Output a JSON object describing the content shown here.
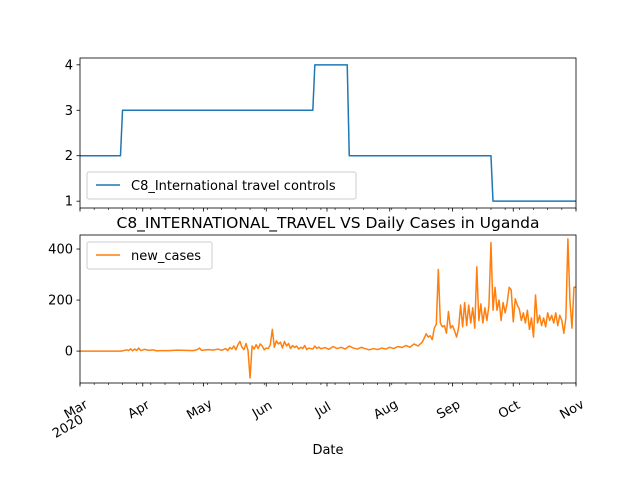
{
  "chart_data": [
    {
      "type": "line",
      "title": "",
      "xlabel": "",
      "ylabel": "",
      "yticks": [
        1,
        2,
        3,
        4
      ],
      "ylim": [
        0.85,
        4.15
      ],
      "xlim": [
        "2020-03-01",
        "2020-11-01"
      ],
      "grid": false,
      "legend_position": "lower-left",
      "series": [
        {
          "name": "C8_International travel controls",
          "color": "#1f77b4",
          "points": [
            [
              "2020-03-01",
              2
            ],
            [
              "2020-03-21",
              2
            ],
            [
              "2020-03-22",
              3
            ],
            [
              "2020-06-24",
              3
            ],
            [
              "2020-06-25",
              4
            ],
            [
              "2020-07-11",
              4
            ],
            [
              "2020-07-12",
              2
            ],
            [
              "2020-09-20",
              2
            ],
            [
              "2020-09-21",
              1
            ],
            [
              "2020-11-01",
              1
            ]
          ]
        }
      ]
    },
    {
      "type": "line",
      "title": "C8_INTERNATIONAL_TRAVEL VS Daily Cases in Uganda",
      "xlabel": "Date",
      "ylabel": "",
      "yticks": [
        0,
        200,
        400
      ],
      "ylim": [
        -125,
        455
      ],
      "xlim": [
        "2020-03-01",
        "2020-11-01"
      ],
      "grid": false,
      "legend_position": "upper-left",
      "xtick_labels": [
        {
          "date": "2020-03-01",
          "label": "Mar",
          "sublabel": "2020"
        },
        {
          "date": "2020-04-01",
          "label": "Apr"
        },
        {
          "date": "2020-05-01",
          "label": "May"
        },
        {
          "date": "2020-06-01",
          "label": "Jun"
        },
        {
          "date": "2020-07-01",
          "label": "Jul"
        },
        {
          "date": "2020-08-01",
          "label": "Aug"
        },
        {
          "date": "2020-09-01",
          "label": "Sep"
        },
        {
          "date": "2020-10-01",
          "label": "Oct"
        },
        {
          "date": "2020-11-01",
          "label": "Nov"
        }
      ],
      "series": [
        {
          "name": "new_cases",
          "color": "#ff7f0e",
          "points": [
            [
              "2020-03-01",
              0
            ],
            [
              "2020-03-21",
              0
            ],
            [
              "2020-03-22",
              1
            ],
            [
              "2020-03-24",
              5
            ],
            [
              "2020-03-25",
              2
            ],
            [
              "2020-03-26",
              9
            ],
            [
              "2020-03-27",
              1
            ],
            [
              "2020-03-28",
              8
            ],
            [
              "2020-03-29",
              3
            ],
            [
              "2020-03-30",
              12
            ],
            [
              "2020-03-31",
              2
            ],
            [
              "2020-04-02",
              7
            ],
            [
              "2020-04-04",
              3
            ],
            [
              "2020-04-06",
              5
            ],
            [
              "2020-04-08",
              1
            ],
            [
              "2020-04-10",
              2
            ],
            [
              "2020-04-14",
              2
            ],
            [
              "2020-04-18",
              4
            ],
            [
              "2020-04-22",
              3
            ],
            [
              "2020-04-26",
              2
            ],
            [
              "2020-04-28",
              6
            ],
            [
              "2020-04-29",
              12
            ],
            [
              "2020-04-30",
              3
            ],
            [
              "2020-05-03",
              6
            ],
            [
              "2020-05-06",
              4
            ],
            [
              "2020-05-08",
              8
            ],
            [
              "2020-05-10",
              3
            ],
            [
              "2020-05-12",
              10
            ],
            [
              "2020-05-13",
              2
            ],
            [
              "2020-05-14",
              14
            ],
            [
              "2020-05-15",
              8
            ],
            [
              "2020-05-16",
              20
            ],
            [
              "2020-05-17",
              5
            ],
            [
              "2020-05-18",
              25
            ],
            [
              "2020-05-19",
              38
            ],
            [
              "2020-05-20",
              15
            ],
            [
              "2020-05-21",
              6
            ],
            [
              "2020-05-22",
              30
            ],
            [
              "2020-05-23",
              2
            ],
            [
              "2020-05-24",
              -105
            ],
            [
              "2020-05-25",
              20
            ],
            [
              "2020-05-26",
              8
            ],
            [
              "2020-05-27",
              25
            ],
            [
              "2020-05-28",
              10
            ],
            [
              "2020-05-29",
              28
            ],
            [
              "2020-05-30",
              20
            ],
            [
              "2020-05-31",
              5
            ],
            [
              "2020-06-01",
              12
            ],
            [
              "2020-06-02",
              10
            ],
            [
              "2020-06-03",
              25
            ],
            [
              "2020-06-04",
              85
            ],
            [
              "2020-06-05",
              15
            ],
            [
              "2020-06-06",
              40
            ],
            [
              "2020-06-07",
              28
            ],
            [
              "2020-06-08",
              35
            ],
            [
              "2020-06-09",
              12
            ],
            [
              "2020-06-10",
              38
            ],
            [
              "2020-06-11",
              20
            ],
            [
              "2020-06-12",
              30
            ],
            [
              "2020-06-13",
              10
            ],
            [
              "2020-06-14",
              22
            ],
            [
              "2020-06-15",
              14
            ],
            [
              "2020-06-16",
              20
            ],
            [
              "2020-06-17",
              8
            ],
            [
              "2020-06-18",
              15
            ],
            [
              "2020-06-19",
              10
            ],
            [
              "2020-06-20",
              22
            ],
            [
              "2020-06-21",
              6
            ],
            [
              "2020-06-22",
              12
            ],
            [
              "2020-06-24",
              8
            ],
            [
              "2020-06-25",
              20
            ],
            [
              "2020-06-26",
              10
            ],
            [
              "2020-06-27",
              16
            ],
            [
              "2020-06-28",
              9
            ],
            [
              "2020-06-30",
              14
            ],
            [
              "2020-07-02",
              7
            ],
            [
              "2020-07-04",
              18
            ],
            [
              "2020-07-06",
              10
            ],
            [
              "2020-07-08",
              15
            ],
            [
              "2020-07-10",
              8
            ],
            [
              "2020-07-12",
              20
            ],
            [
              "2020-07-14",
              12
            ],
            [
              "2020-07-16",
              8
            ],
            [
              "2020-07-18",
              15
            ],
            [
              "2020-07-20",
              9
            ],
            [
              "2020-07-22",
              5
            ],
            [
              "2020-07-24",
              10
            ],
            [
              "2020-07-26",
              6
            ],
            [
              "2020-07-28",
              12
            ],
            [
              "2020-07-30",
              8
            ],
            [
              "2020-08-01",
              15
            ],
            [
              "2020-08-03",
              10
            ],
            [
              "2020-08-05",
              18
            ],
            [
              "2020-08-07",
              14
            ],
            [
              "2020-08-09",
              22
            ],
            [
              "2020-08-11",
              15
            ],
            [
              "2020-08-13",
              28
            ],
            [
              "2020-08-15",
              20
            ],
            [
              "2020-08-17",
              35
            ],
            [
              "2020-08-18",
              50
            ],
            [
              "2020-08-19",
              68
            ],
            [
              "2020-08-20",
              55
            ],
            [
              "2020-08-21",
              60
            ],
            [
              "2020-08-22",
              45
            ],
            [
              "2020-08-23",
              90
            ],
            [
              "2020-08-24",
              105
            ],
            [
              "2020-08-25",
              320
            ],
            [
              "2020-08-26",
              110
            ],
            [
              "2020-08-27",
              95
            ],
            [
              "2020-08-28",
              100
            ],
            [
              "2020-08-29",
              70
            ],
            [
              "2020-08-30",
              155
            ],
            [
              "2020-08-31",
              90
            ],
            [
              "2020-09-01",
              100
            ],
            [
              "2020-09-02",
              80
            ],
            [
              "2020-09-03",
              55
            ],
            [
              "2020-09-04",
              90
            ],
            [
              "2020-09-05",
              180
            ],
            [
              "2020-09-06",
              95
            ],
            [
              "2020-09-07",
              190
            ],
            [
              "2020-09-08",
              100
            ],
            [
              "2020-09-09",
              180
            ],
            [
              "2020-09-10",
              110
            ],
            [
              "2020-09-11",
              170
            ],
            [
              "2020-09-12",
              90
            ],
            [
              "2020-09-13",
              330
            ],
            [
              "2020-09-14",
              120
            ],
            [
              "2020-09-15",
              185
            ],
            [
              "2020-09-16",
              110
            ],
            [
              "2020-09-17",
              170
            ],
            [
              "2020-09-18",
              120
            ],
            [
              "2020-09-19",
              180
            ],
            [
              "2020-09-20",
              425
            ],
            [
              "2020-09-21",
              160
            ],
            [
              "2020-09-22",
              250
            ],
            [
              "2020-09-23",
              160
            ],
            [
              "2020-09-24",
              200
            ],
            [
              "2020-09-25",
              120
            ],
            [
              "2020-09-26",
              190
            ],
            [
              "2020-09-27",
              150
            ],
            [
              "2020-09-28",
              190
            ],
            [
              "2020-09-29",
              250
            ],
            [
              "2020-09-30",
              240
            ],
            [
              "2020-10-01",
              115
            ],
            [
              "2020-10-02",
              205
            ],
            [
              "2020-10-03",
              180
            ],
            [
              "2020-10-04",
              165
            ],
            [
              "2020-10-05",
              120
            ],
            [
              "2020-10-06",
              150
            ],
            [
              "2020-10-07",
              110
            ],
            [
              "2020-10-08",
              160
            ],
            [
              "2020-10-09",
              85
            ],
            [
              "2020-10-10",
              130
            ],
            [
              "2020-10-11",
              55
            ],
            [
              "2020-10-12",
              220
            ],
            [
              "2020-10-13",
              110
            ],
            [
              "2020-10-14",
              140
            ],
            [
              "2020-10-15",
              100
            ],
            [
              "2020-10-16",
              130
            ],
            [
              "2020-10-17",
              95
            ],
            [
              "2020-10-18",
              150
            ],
            [
              "2020-10-19",
              120
            ],
            [
              "2020-10-20",
              140
            ],
            [
              "2020-10-21",
              110
            ],
            [
              "2020-10-22",
              150
            ],
            [
              "2020-10-23",
              100
            ],
            [
              "2020-10-24",
              140
            ],
            [
              "2020-10-25",
              120
            ],
            [
              "2020-10-26",
              70
            ],
            [
              "2020-10-27",
              130
            ],
            [
              "2020-10-28",
              440
            ],
            [
              "2020-10-29",
              200
            ],
            [
              "2020-10-30",
              90
            ],
            [
              "2020-10-31",
              250
            ],
            [
              "2020-11-01",
              250
            ]
          ]
        }
      ]
    }
  ]
}
